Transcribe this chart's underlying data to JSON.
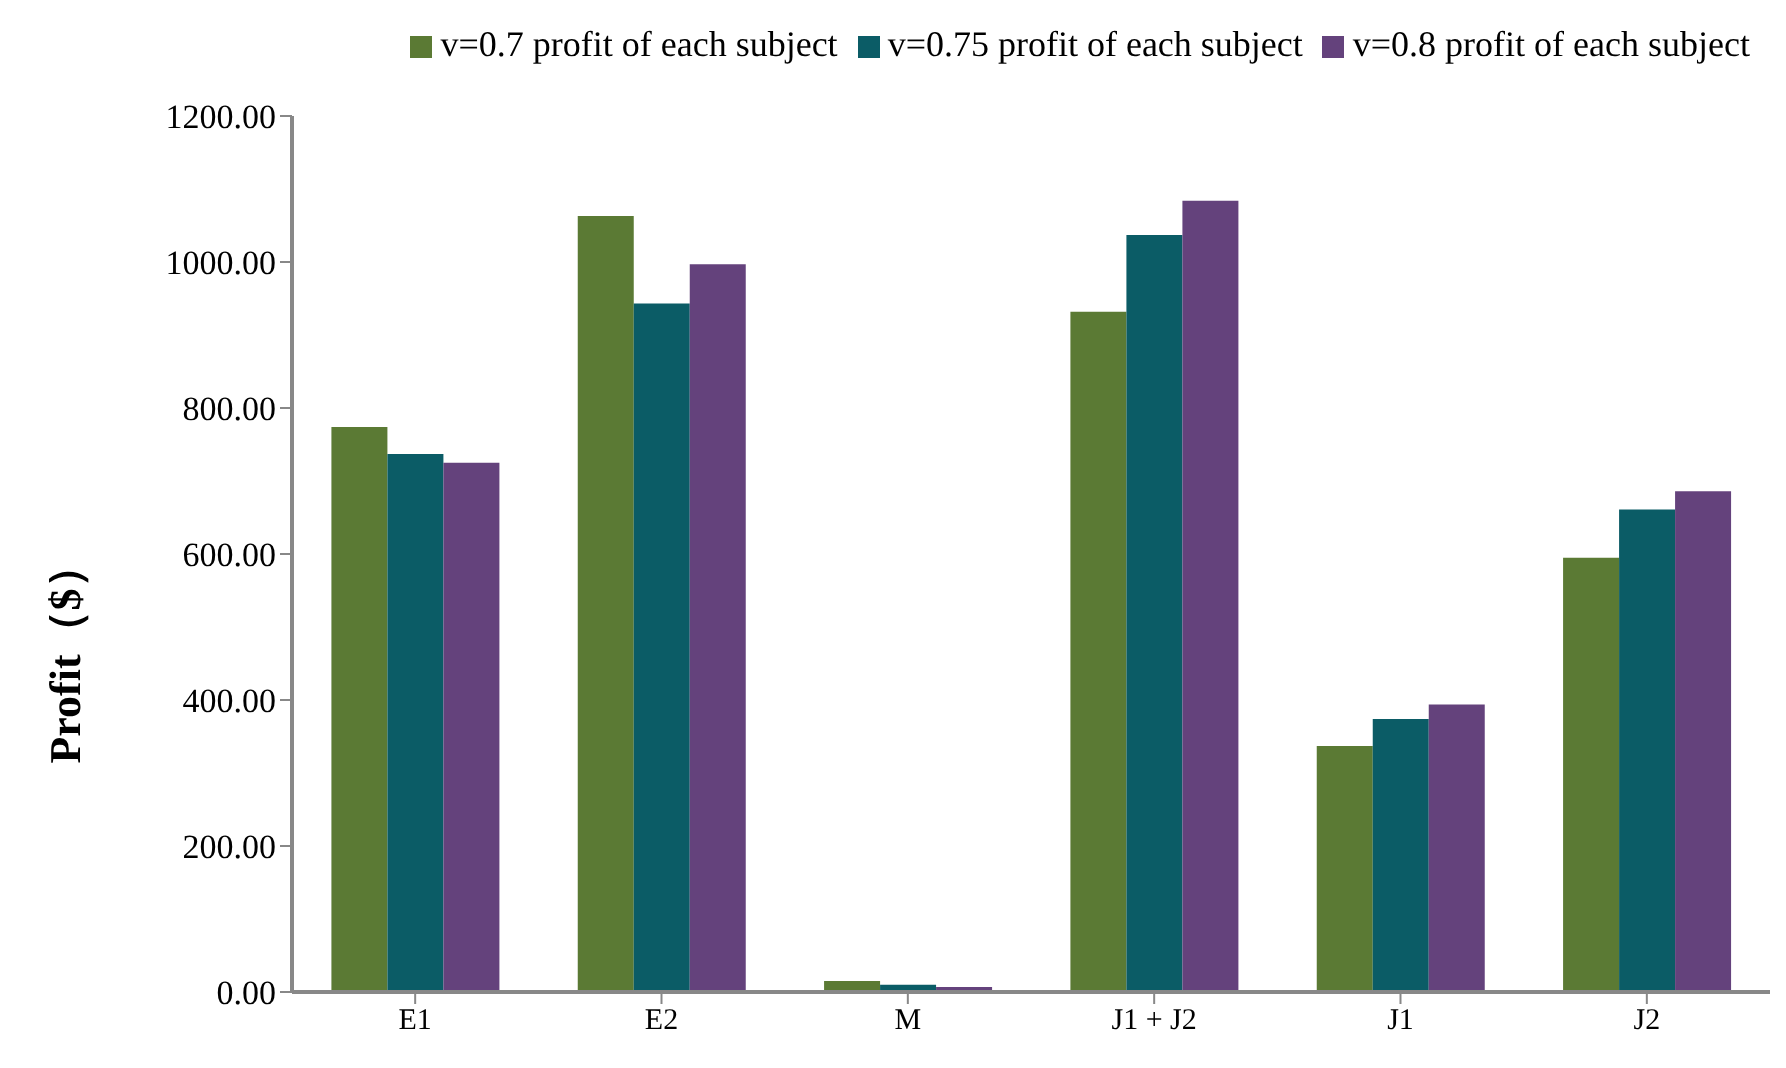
{
  "chart_data": {
    "type": "bar",
    "ylabel": "Profit（$）",
    "categories": [
      "E1",
      "E2",
      "M",
      "J1 + J2",
      "J1",
      "J2"
    ],
    "series": [
      {
        "name": "v=0.7 profit of each subject",
        "color": "#5b7a34",
        "values": [
          774,
          1063,
          15,
          932,
          337,
          595
        ]
      },
      {
        "name": "v=0.75 profit of each subject",
        "color": "#0b5c66",
        "values": [
          737,
          943,
          10,
          1037,
          374,
          661
        ]
      },
      {
        "name": "v=0.8 profit of each subject",
        "color": "#64427c",
        "values": [
          725,
          997,
          7,
          1084,
          394,
          686
        ]
      }
    ],
    "ylim": [
      0,
      1200
    ],
    "yticks": [
      {
        "value": 0,
        "label": "0.00"
      },
      {
        "value": 200,
        "label": "200.00"
      },
      {
        "value": 400,
        "label": "400.00"
      },
      {
        "value": 600,
        "label": "600.00"
      },
      {
        "value": 800,
        "label": "800.00"
      },
      {
        "value": 1000,
        "label": "1000.00"
      },
      {
        "value": 1200,
        "label": "1200.00"
      }
    ],
    "grid": false,
    "legend": "top"
  }
}
